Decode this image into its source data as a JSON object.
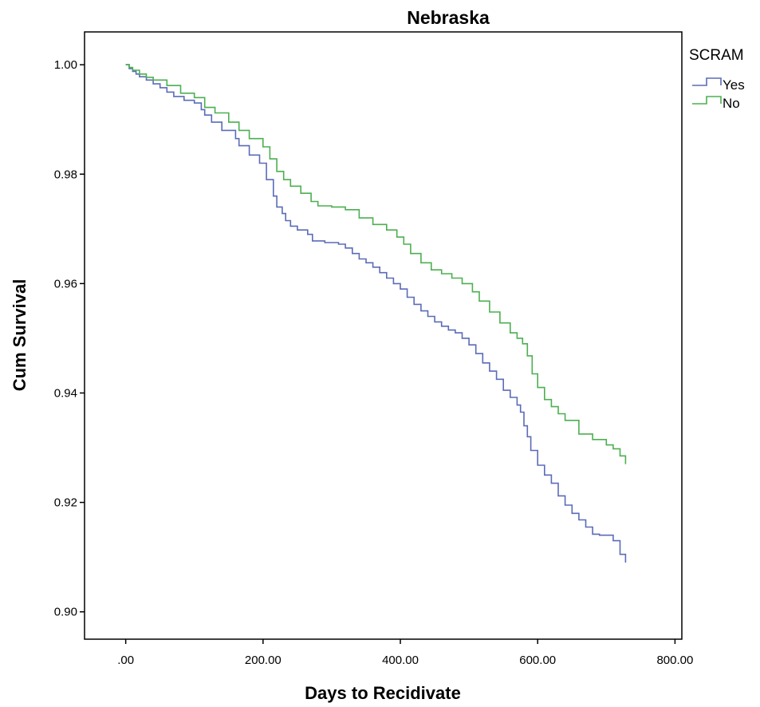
{
  "chart_data": {
    "type": "line",
    "title": "Nebraska",
    "xlabel": "Days to Recidivate",
    "ylabel": "Cum Survival",
    "xlim": [
      -60,
      810
    ],
    "ylim": [
      0.895,
      1.006
    ],
    "xticks": [
      0,
      200,
      400,
      600,
      800
    ],
    "xtick_labels": [
      ".00",
      "200.00",
      "400.00",
      "600.00",
      "800.00"
    ],
    "yticks": [
      0.9,
      0.92,
      0.94,
      0.96,
      0.98,
      1.0
    ],
    "ytick_labels": [
      "0.90",
      "0.92",
      "0.94",
      "0.96",
      "0.98",
      "1.00"
    ],
    "grid": false,
    "legend": {
      "title": "SCRAM",
      "position": "right"
    },
    "series": [
      {
        "name": "Yes",
        "color": "#5b6bb8",
        "x": [
          0,
          5,
          10,
          15,
          20,
          30,
          40,
          50,
          60,
          70,
          85,
          100,
          110,
          115,
          125,
          140,
          160,
          165,
          180,
          195,
          205,
          215,
          220,
          228,
          233,
          240,
          250,
          265,
          272,
          290,
          310,
          320,
          330,
          340,
          350,
          360,
          370,
          380,
          390,
          400,
          410,
          420,
          430,
          440,
          450,
          460,
          470,
          480,
          490,
          500,
          510,
          520,
          530,
          540,
          550,
          560,
          570,
          575,
          580,
          585,
          590,
          600,
          610,
          620,
          630,
          640,
          650,
          660,
          670,
          680,
          690,
          700,
          710,
          720,
          728
        ],
        "y": [
          1.0,
          0.9993,
          0.9988,
          0.9983,
          0.9978,
          0.9972,
          0.9965,
          0.9958,
          0.995,
          0.9942,
          0.9935,
          0.993,
          0.9918,
          0.9908,
          0.9895,
          0.988,
          0.9865,
          0.9852,
          0.9835,
          0.982,
          0.979,
          0.976,
          0.974,
          0.9728,
          0.9715,
          0.9705,
          0.9698,
          0.969,
          0.9678,
          0.9675,
          0.9672,
          0.9665,
          0.9655,
          0.9645,
          0.9638,
          0.963,
          0.962,
          0.961,
          0.96,
          0.959,
          0.9575,
          0.9562,
          0.955,
          0.954,
          0.953,
          0.9522,
          0.9515,
          0.951,
          0.95,
          0.9488,
          0.9472,
          0.9455,
          0.944,
          0.9425,
          0.9405,
          0.9392,
          0.9378,
          0.9365,
          0.934,
          0.932,
          0.9295,
          0.9268,
          0.925,
          0.9235,
          0.9212,
          0.9195,
          0.918,
          0.9168,
          0.9155,
          0.9142,
          0.914,
          0.914,
          0.913,
          0.9105,
          0.909
        ]
      },
      {
        "name": "No",
        "color": "#4caf50",
        "x": [
          0,
          5,
          10,
          20,
          30,
          40,
          60,
          80,
          100,
          115,
          130,
          150,
          165,
          180,
          200,
          210,
          220,
          230,
          240,
          255,
          270,
          280,
          300,
          320,
          340,
          360,
          380,
          395,
          405,
          415,
          430,
          445,
          460,
          475,
          490,
          505,
          515,
          530,
          545,
          560,
          570,
          578,
          585,
          592,
          600,
          610,
          620,
          630,
          640,
          660,
          680,
          700,
          710,
          720,
          728
        ],
        "y": [
          1.0,
          0.9995,
          0.999,
          0.9983,
          0.9977,
          0.9972,
          0.9962,
          0.9948,
          0.994,
          0.9922,
          0.9912,
          0.9895,
          0.988,
          0.9865,
          0.985,
          0.9828,
          0.9805,
          0.979,
          0.9778,
          0.9765,
          0.975,
          0.9742,
          0.974,
          0.9735,
          0.972,
          0.9708,
          0.9698,
          0.9685,
          0.9672,
          0.9655,
          0.9638,
          0.9625,
          0.9618,
          0.961,
          0.96,
          0.9585,
          0.9568,
          0.9548,
          0.9528,
          0.951,
          0.95,
          0.949,
          0.9468,
          0.9435,
          0.941,
          0.9388,
          0.9375,
          0.9362,
          0.935,
          0.9325,
          0.9315,
          0.9305,
          0.9298,
          0.9285,
          0.927
        ]
      }
    ]
  }
}
